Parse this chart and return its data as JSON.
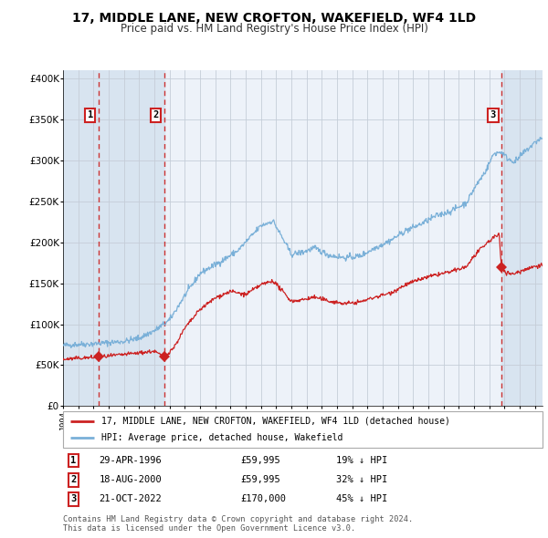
{
  "title": "17, MIDDLE LANE, NEW CROFTON, WAKEFIELD, WF4 1LD",
  "subtitle": "Price paid vs. HM Land Registry's House Price Index (HPI)",
  "ylim": [
    0,
    410000
  ],
  "xlim_start": 1994.0,
  "xlim_end": 2025.5,
  "yticks": [
    0,
    50000,
    100000,
    150000,
    200000,
    250000,
    300000,
    350000,
    400000
  ],
  "ytick_labels": [
    "£0",
    "£50K",
    "£100K",
    "£150K",
    "£200K",
    "£250K",
    "£300K",
    "£350K",
    "£400K"
  ],
  "background_color": "#ffffff",
  "plot_bg_color": "#edf2f9",
  "hatch_bg_color": "#d8e4f0",
  "grid_color": "#c5cdd8",
  "hpi_line_color": "#7ab0d8",
  "price_line_color": "#cc2222",
  "dashed_line_color": "#cc3333",
  "sale_marker_color": "#cc2222",
  "annotation_box_color": "#cc2222",
  "sale1_x": 1996.33,
  "sale1_y": 59995,
  "sale1_label": "1",
  "sale1_date": "29-APR-1996",
  "sale1_price": "£59,995",
  "sale1_hpi": "19% ↓ HPI",
  "sale2_x": 2000.63,
  "sale2_y": 59995,
  "sale2_label": "2",
  "sale2_date": "18-AUG-2000",
  "sale2_price": "£59,995",
  "sale2_hpi": "32% ↓ HPI",
  "sale3_x": 2022.8,
  "sale3_y": 170000,
  "sale3_label": "3",
  "sale3_date": "21-OCT-2022",
  "sale3_price": "£170,000",
  "sale3_hpi": "45% ↓ HPI",
  "legend_label1": "17, MIDDLE LANE, NEW CROFTON, WAKEFIELD, WF4 1LD (detached house)",
  "legend_label2": "HPI: Average price, detached house, Wakefield",
  "footer1": "Contains HM Land Registry data © Crown copyright and database right 2024.",
  "footer2": "This data is licensed under the Open Government Licence v3.0.",
  "title_fontsize": 10,
  "subtitle_fontsize": 8.5,
  "axis_fontsize": 7.5
}
